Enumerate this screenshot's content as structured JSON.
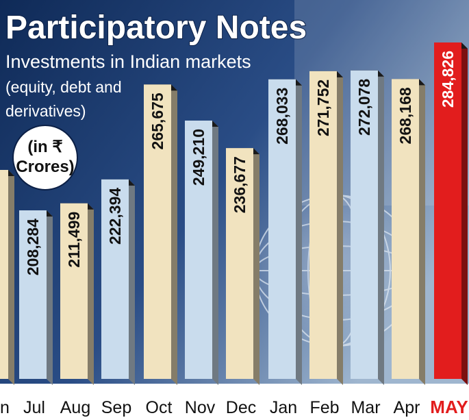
{
  "chart_data": {
    "type": "bar",
    "title": "Participatory Notes",
    "subtitle": "Investments in Indian markets",
    "note": "(equity, debt and derivatives)",
    "note_lines": [
      "(equity, debt and",
      "derivatives)"
    ],
    "unit_lines": [
      "(in ₹",
      "Crores)"
    ],
    "categories": [
      "Jun",
      "Jul",
      "Aug",
      "Sep",
      "Oct",
      "Nov",
      "Dec",
      "Jan",
      "Feb",
      "Mar",
      "Apr",
      "MAY"
    ],
    "category_text": [
      "n",
      "Jul",
      "Aug",
      "Sep",
      "Oct",
      "Nov",
      "Dec",
      "Jan",
      "Feb",
      "Mar",
      "Apr",
      "MAY"
    ],
    "values": [
      null,
      208284,
      211499,
      222394,
      265675,
      249210,
      236677,
      268033,
      271752,
      272078,
      268168,
      284826
    ],
    "value_labels": [
      "",
      "208,284",
      "211,499",
      "222,394",
      "265,675",
      "249,210",
      "236,677",
      "268,033",
      "271,752",
      "272,078",
      "268,168",
      "284,826"
    ],
    "bar_colors": [
      "#f1e3bf",
      "#c9dced",
      "#f1e3bf",
      "#c9dced",
      "#f1e3bf",
      "#c9dced",
      "#f1e3bf",
      "#c9dced",
      "#f1e3bf",
      "#c9dced",
      "#f1e3bf",
      "#e21d1d"
    ],
    "highlight_color": "#e21d1d",
    "background_color": "#1c3a6e"
  }
}
